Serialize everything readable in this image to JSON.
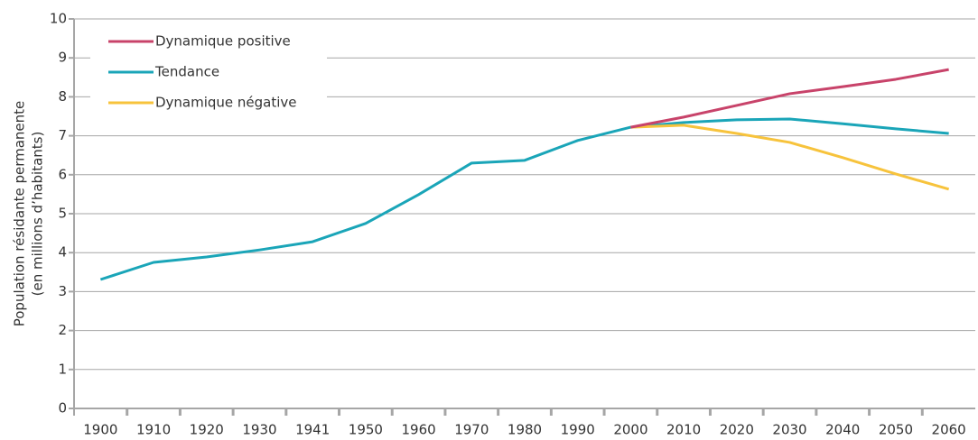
{
  "chart_data": {
    "type": "line",
    "ylabel": [
      "Population résidante permanente",
      "(en millions d’habitants)"
    ],
    "categories": [
      "1900",
      "1910",
      "1920",
      "1930",
      "1941",
      "1950",
      "1960",
      "1970",
      "1980",
      "1990",
      "2000",
      "2010",
      "2020",
      "2030",
      "2040",
      "2050",
      "2060"
    ],
    "series": [
      {
        "name": "Dynamique positive",
        "color": "#c8436a",
        "values": [
          null,
          null,
          null,
          null,
          null,
          null,
          null,
          null,
          null,
          null,
          7.22,
          7.48,
          7.78,
          8.08,
          8.26,
          8.45,
          8.7
        ]
      },
      {
        "name": "Tendance",
        "color": "#1aa5b8",
        "values": [
          3.31,
          3.75,
          3.89,
          4.07,
          4.28,
          4.75,
          5.49,
          6.3,
          6.37,
          6.88,
          7.22,
          7.34,
          7.41,
          7.43,
          7.31,
          7.18,
          7.06
        ]
      },
      {
        "name": "Dynamique négative",
        "color": "#f7c33c",
        "values": [
          null,
          null,
          null,
          null,
          null,
          null,
          null,
          null,
          null,
          null,
          7.22,
          7.27,
          7.06,
          6.83,
          6.44,
          6.02,
          5.63
        ]
      }
    ],
    "ylim": [
      0,
      10
    ],
    "yticks": [
      0,
      1,
      2,
      3,
      4,
      5,
      6,
      7,
      8,
      9,
      10
    ],
    "grid": true,
    "legend": "top-left"
  }
}
